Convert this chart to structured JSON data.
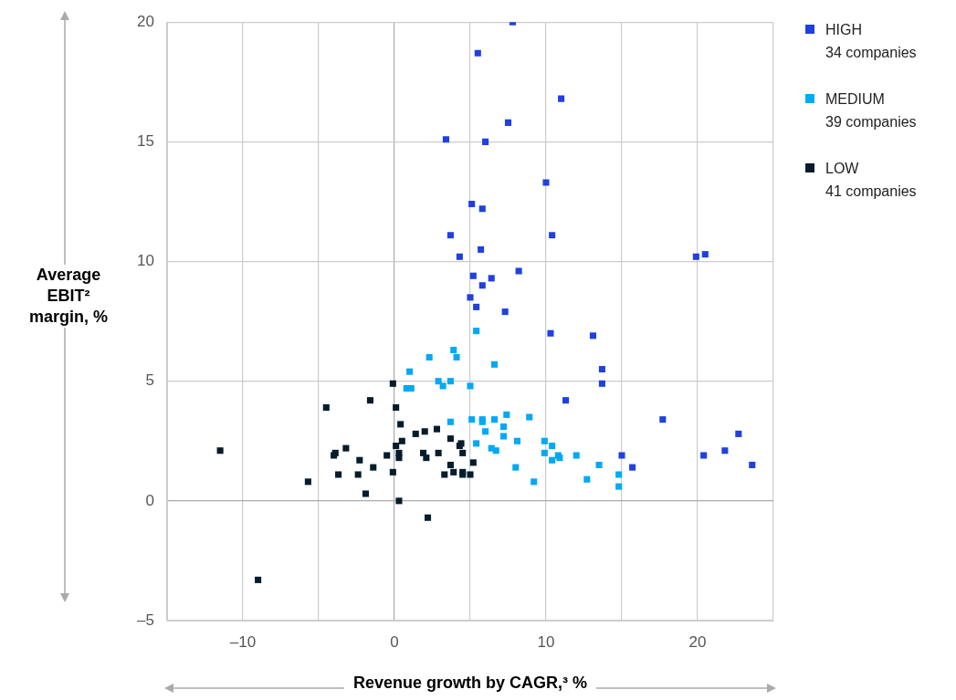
{
  "chart_data": {
    "type": "scatter",
    "xlabel": "Revenue growth by CAGR,³ %",
    "ylabel": "Average EBIT² margin, %",
    "xlim": [
      -15,
      25
    ],
    "xticks": [
      {
        "value": -15,
        "label": null
      },
      {
        "value": -10,
        "label": "–10"
      },
      {
        "value": -5,
        "label": null
      },
      0,
      {
        "value": 5,
        "label": null
      },
      10,
      {
        "value": 15,
        "label": null
      },
      20,
      {
        "value": 25,
        "label": null
      }
    ],
    "ylim": [
      -5,
      20
    ],
    "yticks": [
      {
        "value": -5,
        "label": "–5"
      },
      0,
      5,
      10,
      15,
      20
    ],
    "grid": true,
    "legend": "top right",
    "marker": "square",
    "series": [
      {
        "name": "HIGH\n34 companies",
        "color": "#2040e0",
        "x": [
          7.8,
          5.5,
          11.0,
          7.5,
          3.4,
          6.0,
          10.0,
          5.1,
          5.8,
          3.7,
          10.4,
          5.7,
          4.3,
          19.9,
          20.5,
          8.2,
          6.4,
          5.2,
          5.8,
          5.0,
          5.4,
          7.3,
          10.3,
          13.1,
          13.7,
          13.7,
          11.3,
          17.7,
          22.7,
          15.0,
          15.7,
          20.4,
          21.8,
          23.6
        ],
        "values": [
          20.0,
          18.7,
          16.8,
          15.8,
          15.1,
          15.0,
          13.3,
          12.4,
          12.2,
          11.1,
          11.1,
          10.5,
          10.2,
          10.2,
          10.3,
          9.6,
          9.3,
          9.4,
          9.0,
          8.5,
          8.1,
          7.9,
          7.0,
          6.9,
          5.5,
          4.9,
          4.2,
          3.4,
          2.8,
          1.9,
          1.4,
          1.9,
          2.1,
          1.5
        ]
      },
      {
        "name": "MEDIUM\n39 companies",
        "color": "#00a9f4",
        "x": [
          5.4,
          3.9,
          2.3,
          4.1,
          6.6,
          1.0,
          2.9,
          3.7,
          3.2,
          0.8,
          1.1,
          5.0,
          7.4,
          8.9,
          5.1,
          5.8,
          5.8,
          6.6,
          3.7,
          7.2,
          6.0,
          7.2,
          8.1,
          9.9,
          10.4,
          5.4,
          6.4,
          6.7,
          9.9,
          10.8,
          10.9,
          12.0,
          10.4,
          8.0,
          13.5,
          12.7,
          9.2,
          14.8,
          14.8
        ],
        "values": [
          7.1,
          6.3,
          6.0,
          6.0,
          5.7,
          5.4,
          5.0,
          5.0,
          4.8,
          4.7,
          4.7,
          4.8,
          3.6,
          3.5,
          3.4,
          3.4,
          3.3,
          3.4,
          3.3,
          3.1,
          2.9,
          2.7,
          2.5,
          2.5,
          2.3,
          2.4,
          2.2,
          2.1,
          2.0,
          1.9,
          1.8,
          1.9,
          1.7,
          1.4,
          1.5,
          0.9,
          0.8,
          1.1,
          0.6
        ]
      },
      {
        "name": "LOW\n41 companies",
        "color": "#051c2c",
        "x": [
          -0.1,
          0.1,
          0.4,
          1.4,
          2.0,
          2.8,
          0.5,
          0.1,
          3.7,
          4.3,
          4.4,
          -0.5,
          0.3,
          0.3,
          1.9,
          2.9,
          4.5,
          2.1,
          3.7,
          5.2,
          -0.1,
          3.9,
          3.3,
          4.5,
          4.5,
          5.0,
          0.3,
          -1.6,
          -4.5,
          -11.5,
          -3.9,
          -4.0,
          -3.2,
          -2.3,
          -1.4,
          -3.7,
          -2.4,
          -5.7,
          -1.9,
          -9.0,
          2.2
        ],
        "values": [
          4.9,
          3.9,
          3.2,
          2.8,
          2.9,
          3.0,
          2.5,
          2.3,
          2.6,
          2.3,
          2.4,
          1.9,
          2.0,
          1.8,
          2.0,
          2.0,
          2.0,
          1.8,
          1.5,
          1.6,
          1.2,
          1.2,
          1.1,
          1.2,
          1.1,
          1.1,
          0.0,
          4.2,
          3.9,
          2.1,
          2.0,
          1.9,
          2.2,
          1.7,
          1.4,
          1.1,
          1.1,
          0.8,
          0.3,
          -3.3,
          -0.7
        ]
      }
    ]
  }
}
